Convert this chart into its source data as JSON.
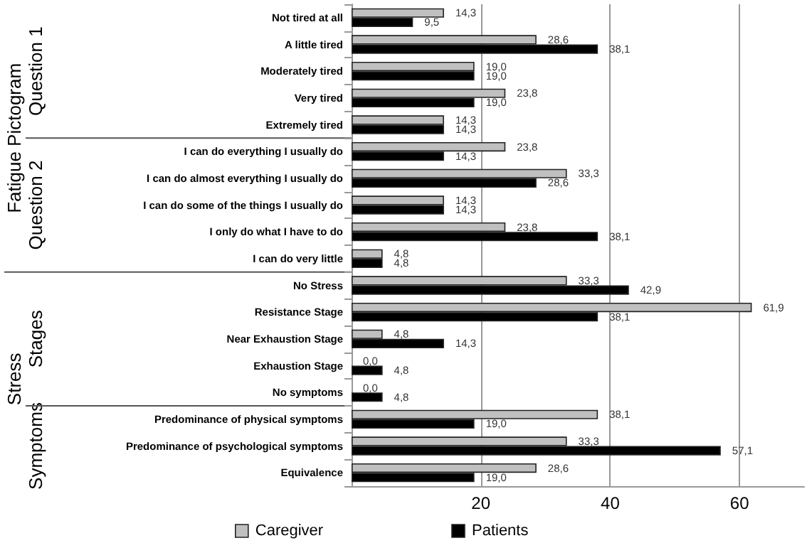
{
  "chart_data": {
    "type": "bar",
    "orientation": "horizontal",
    "categories": [
      "Not tired at all",
      "A little tired",
      "Moderately tired",
      "Very tired",
      "Extremely tired",
      "I can do everything I usually do",
      "I can do almost everything I usually do",
      "I can do some of the things I usually do",
      "I only do what I have to do",
      "I can do very little",
      "No Stress",
      "Resistance Stage",
      "Near Exhaustion Stage",
      "Exhaustion Stage",
      "No symptoms",
      "Predominance of physical symptoms",
      "Predominance of psychological symptoms",
      "Equivalence"
    ],
    "series": [
      {
        "name": "Caregiver",
        "color": "#c0c0c0",
        "values": [
          14.3,
          28.6,
          19.0,
          23.8,
          14.3,
          23.8,
          33.3,
          14.3,
          23.8,
          4.8,
          33.3,
          61.9,
          4.8,
          0.0,
          0.0,
          38.1,
          33.3,
          28.6
        ],
        "value_labels": [
          "14,3",
          "28,6",
          "19,0",
          "23,8",
          "14,3",
          "23,8",
          "33,3",
          "14,3",
          "23,8",
          "4,8",
          "33,3",
          "61,9",
          "4,8",
          "0,0",
          "0,0",
          "38,1",
          "33,3",
          "28,6"
        ]
      },
      {
        "name": "Patients",
        "color": "#000000",
        "values": [
          9.5,
          38.1,
          19.0,
          19.0,
          14.3,
          14.3,
          28.6,
          14.3,
          38.1,
          4.8,
          42.9,
          38.1,
          14.3,
          4.8,
          4.8,
          19.0,
          57.1,
          19.0
        ],
        "value_labels": [
          "9,5",
          "38,1",
          "19,0",
          "19,0",
          "14,3",
          "14,3",
          "28,6",
          "14,3",
          "38,1",
          "4,8",
          "42,9",
          "38,1",
          "14,3",
          "4,8",
          "4,8",
          "19,0",
          "57,1",
          "19,0"
        ]
      }
    ],
    "xlim": [
      0,
      70
    ],
    "xticks": [
      20,
      40,
      60
    ],
    "grid": "x",
    "legend": "bottom",
    "annotations": [
      "Fatigue Pictogram",
      "Question 1",
      "Question 2",
      "Stress",
      "Stages",
      "Symptoms"
    ]
  }
}
